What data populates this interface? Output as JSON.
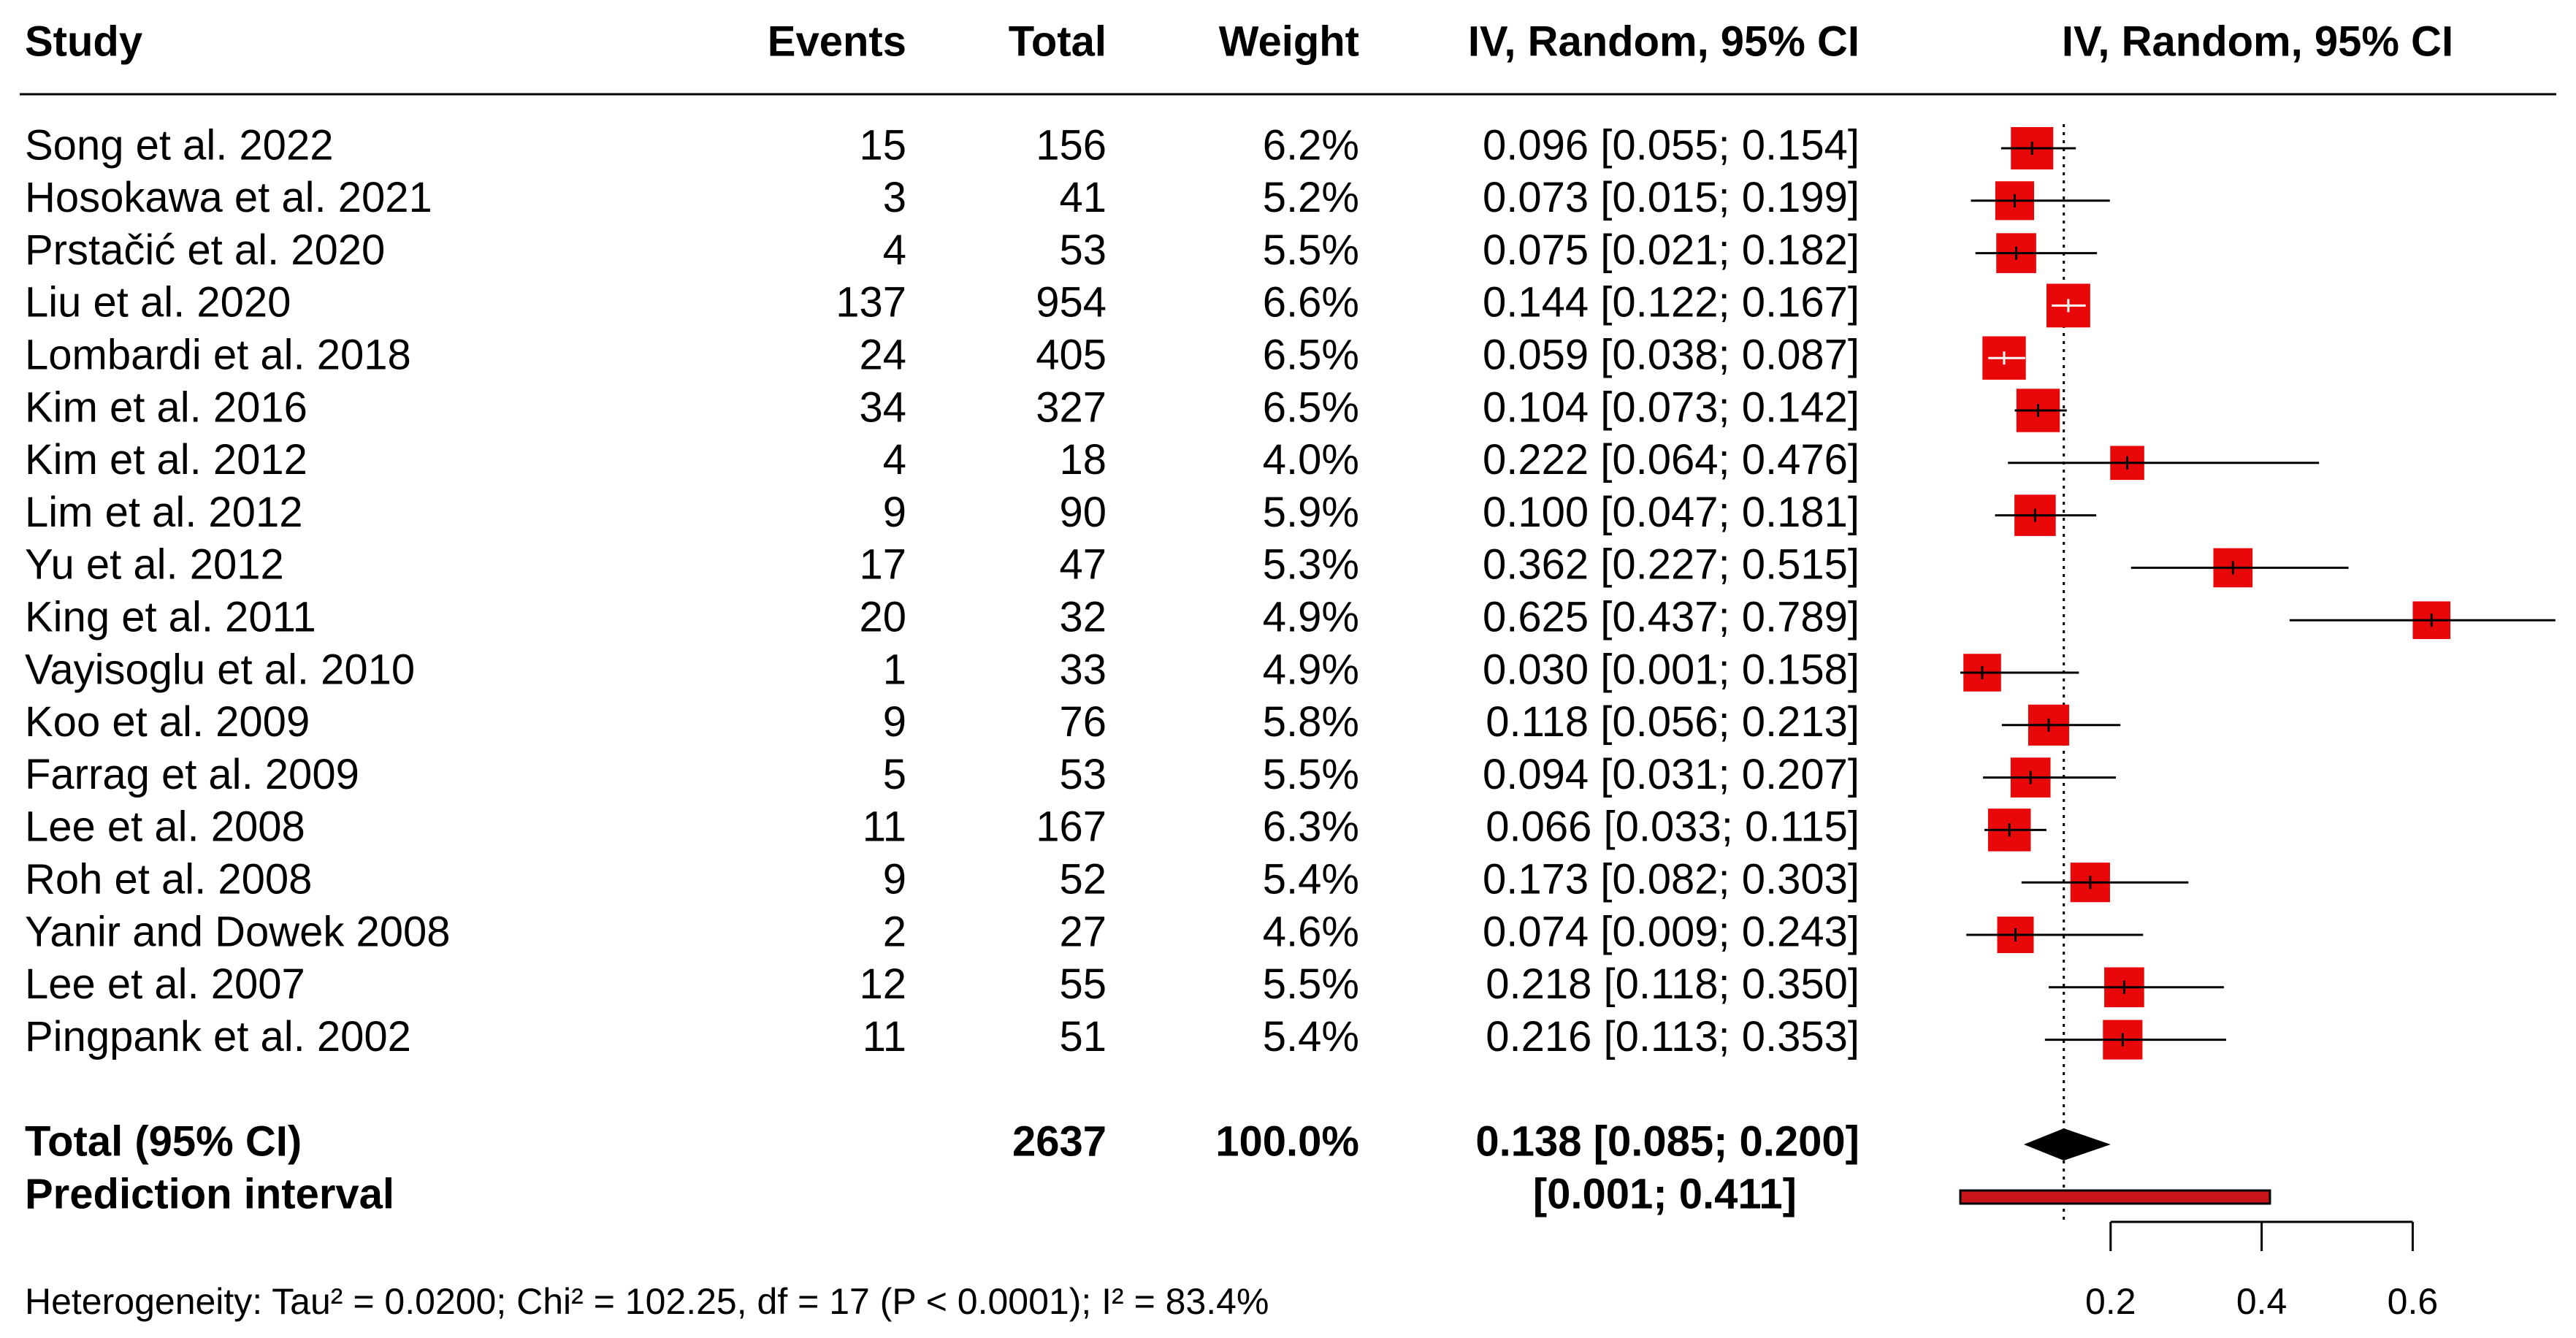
{
  "chart_data": {
    "type": "forest",
    "columns": [
      "Study",
      "Events",
      "Total",
      "Weight",
      "IV, Random, 95% CI"
    ],
    "plot_header": "IV, Random, 95% CI",
    "studies": [
      {
        "study": "Song et al. 2022",
        "events": 15,
        "total": 156,
        "weight": 6.2,
        "weight_label": "6.2%",
        "estimate": 0.096,
        "lower": 0.055,
        "upper": 0.154,
        "ci_label": "0.096 [0.055; 0.154]"
      },
      {
        "study": "Hosokawa et al. 2021",
        "events": 3,
        "total": 41,
        "weight": 5.2,
        "weight_label": "5.2%",
        "estimate": 0.073,
        "lower": 0.015,
        "upper": 0.199,
        "ci_label": "0.073 [0.015; 0.199]"
      },
      {
        "study": "Prstačić et al. 2020",
        "events": 4,
        "total": 53,
        "weight": 5.5,
        "weight_label": "5.5%",
        "estimate": 0.075,
        "lower": 0.021,
        "upper": 0.182,
        "ci_label": "0.075 [0.021; 0.182]"
      },
      {
        "study": "Liu et al. 2020",
        "events": 137,
        "total": 954,
        "weight": 6.6,
        "weight_label": "6.6%",
        "estimate": 0.144,
        "lower": 0.122,
        "upper": 0.167,
        "ci_label": "0.144 [0.122; 0.167]"
      },
      {
        "study": "Lombardi et al. 2018",
        "events": 24,
        "total": 405,
        "weight": 6.5,
        "weight_label": "6.5%",
        "estimate": 0.059,
        "lower": 0.038,
        "upper": 0.087,
        "ci_label": "0.059 [0.038; 0.087]"
      },
      {
        "study": "Kim et al. 2016",
        "events": 34,
        "total": 327,
        "weight": 6.5,
        "weight_label": "6.5%",
        "estimate": 0.104,
        "lower": 0.073,
        "upper": 0.142,
        "ci_label": "0.104 [0.073; 0.142]"
      },
      {
        "study": "Kim et al. 2012",
        "events": 4,
        "total": 18,
        "weight": 4.0,
        "weight_label": "4.0%",
        "estimate": 0.222,
        "lower": 0.064,
        "upper": 0.476,
        "ci_label": "0.222 [0.064; 0.476]"
      },
      {
        "study": "Lim et al. 2012",
        "events": 9,
        "total": 90,
        "weight": 5.9,
        "weight_label": "5.9%",
        "estimate": 0.1,
        "lower": 0.047,
        "upper": 0.181,
        "ci_label": "0.100 [0.047; 0.181]"
      },
      {
        "study": "Yu et al. 2012",
        "events": 17,
        "total": 47,
        "weight": 5.3,
        "weight_label": "5.3%",
        "estimate": 0.362,
        "lower": 0.227,
        "upper": 0.515,
        "ci_label": "0.362 [0.227; 0.515]"
      },
      {
        "study": "King et al. 2011",
        "events": 20,
        "total": 32,
        "weight": 4.9,
        "weight_label": "4.9%",
        "estimate": 0.625,
        "lower": 0.437,
        "upper": 0.789,
        "ci_label": "0.625 [0.437; 0.789]"
      },
      {
        "study": "Vayisoglu et al. 2010",
        "events": 1,
        "total": 33,
        "weight": 4.9,
        "weight_label": "4.9%",
        "estimate": 0.03,
        "lower": 0.001,
        "upper": 0.158,
        "ci_label": "0.030 [0.001; 0.158]"
      },
      {
        "study": "Koo et al. 2009",
        "events": 9,
        "total": 76,
        "weight": 5.8,
        "weight_label": "5.8%",
        "estimate": 0.118,
        "lower": 0.056,
        "upper": 0.213,
        "ci_label": "0.118 [0.056; 0.213]"
      },
      {
        "study": "Farrag et al. 2009",
        "events": 5,
        "total": 53,
        "weight": 5.5,
        "weight_label": "5.5%",
        "estimate": 0.094,
        "lower": 0.031,
        "upper": 0.207,
        "ci_label": "0.094 [0.031; 0.207]"
      },
      {
        "study": "Lee et al. 2008",
        "events": 11,
        "total": 167,
        "weight": 6.3,
        "weight_label": "6.3%",
        "estimate": 0.066,
        "lower": 0.033,
        "upper": 0.115,
        "ci_label": "0.066 [0.033; 0.115]"
      },
      {
        "study": "Roh et al. 2008",
        "events": 9,
        "total": 52,
        "weight": 5.4,
        "weight_label": "5.4%",
        "estimate": 0.173,
        "lower": 0.082,
        "upper": 0.303,
        "ci_label": "0.173 [0.082; 0.303]"
      },
      {
        "study": "Yanir and Dowek 2008",
        "events": 2,
        "total": 27,
        "weight": 4.6,
        "weight_label": "4.6%",
        "estimate": 0.074,
        "lower": 0.009,
        "upper": 0.243,
        "ci_label": "0.074 [0.009; 0.243]"
      },
      {
        "study": "Lee et al. 2007",
        "events": 12,
        "total": 55,
        "weight": 5.5,
        "weight_label": "5.5%",
        "estimate": 0.218,
        "lower": 0.118,
        "upper": 0.35,
        "ci_label": "0.218 [0.118; 0.350]"
      },
      {
        "study": "Pingpank et al. 2002",
        "events": 11,
        "total": 51,
        "weight": 5.4,
        "weight_label": "5.4%",
        "estimate": 0.216,
        "lower": 0.113,
        "upper": 0.353,
        "ci_label": "0.216 [0.113; 0.353]"
      }
    ],
    "total_row": {
      "study": "Total (95% CI)",
      "total": 2637,
      "weight": 100.0,
      "weight_label": "100.0%",
      "estimate": 0.138,
      "lower": 0.085,
      "upper": 0.2,
      "ci_label": "0.138 [0.085; 0.200]"
    },
    "prediction": {
      "study": "Prediction interval",
      "lower": 0.001,
      "upper": 0.411,
      "ci_label": "[0.001; 0.411]"
    },
    "heterogeneity": "Heterogeneity: Tau² = 0.0200; Chi² = 102.25, df = 17 (P < 0.0001); I² = 83.4%",
    "xlim": [
      0.2,
      0.6
    ],
    "xticks": [
      0.2,
      0.4,
      0.6
    ],
    "square_color": "#e8080a",
    "prediction_color": "#c8161a"
  }
}
